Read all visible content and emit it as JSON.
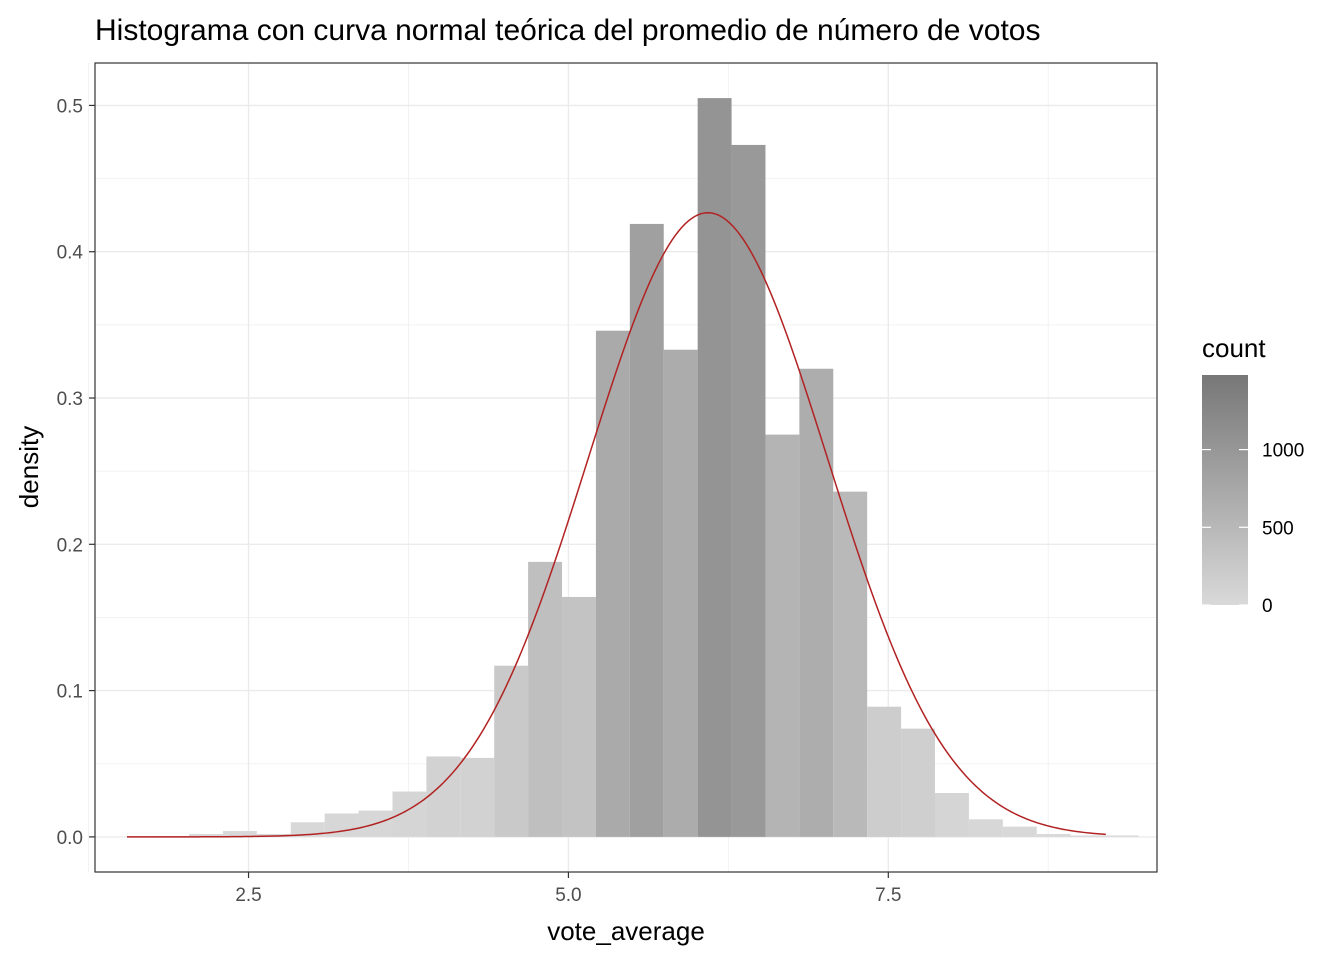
{
  "chart_data": {
    "type": "bar",
    "title": "Histograma con curva normal teórica del promedio de número de votos",
    "xlabel": "vote_average",
    "ylabel": "density",
    "xlim": [
      1.3,
      9.6
    ],
    "ylim": [
      -0.024,
      0.529
    ],
    "x_ticks": [
      2.5,
      5.0,
      7.5
    ],
    "x_tick_labels": [
      "2.5",
      "5.0",
      "7.5"
    ],
    "y_ticks": [
      0.0,
      0.1,
      0.2,
      0.3,
      0.4,
      0.5
    ],
    "y_tick_labels": [
      "0.0",
      "0.1",
      "0.2",
      "0.3",
      "0.4",
      "0.5"
    ],
    "grid": true,
    "bin_width": 0.265,
    "bins": [
      {
        "x0": 1.77,
        "x1": 2.035,
        "density": 0.0005,
        "count": 1
      },
      {
        "x0": 2.035,
        "x1": 2.3,
        "density": 0.002,
        "count": 4
      },
      {
        "x0": 2.3,
        "x1": 2.565,
        "density": 0.004,
        "count": 8
      },
      {
        "x0": 2.565,
        "x1": 2.83,
        "density": 0.002,
        "count": 4
      },
      {
        "x0": 2.83,
        "x1": 3.095,
        "density": 0.01,
        "count": 20
      },
      {
        "x0": 3.095,
        "x1": 3.36,
        "density": 0.016,
        "count": 33
      },
      {
        "x0": 3.36,
        "x1": 3.625,
        "density": 0.018,
        "count": 37
      },
      {
        "x0": 3.625,
        "x1": 3.89,
        "density": 0.031,
        "count": 64
      },
      {
        "x0": 3.89,
        "x1": 4.155,
        "density": 0.055,
        "count": 113
      },
      {
        "x0": 4.155,
        "x1": 4.42,
        "density": 0.054,
        "count": 111
      },
      {
        "x0": 4.42,
        "x1": 4.685,
        "density": 0.117,
        "count": 240
      },
      {
        "x0": 4.685,
        "x1": 4.95,
        "density": 0.188,
        "count": 386
      },
      {
        "x0": 4.95,
        "x1": 5.215,
        "density": 0.164,
        "count": 337
      },
      {
        "x0": 5.215,
        "x1": 5.48,
        "density": 0.346,
        "count": 711
      },
      {
        "x0": 5.48,
        "x1": 5.745,
        "density": 0.419,
        "count": 861
      },
      {
        "x0": 5.745,
        "x1": 6.01,
        "density": 0.333,
        "count": 684
      },
      {
        "x0": 6.01,
        "x1": 6.275,
        "density": 0.505,
        "count": 1038
      },
      {
        "x0": 6.275,
        "x1": 6.54,
        "density": 0.473,
        "count": 972
      },
      {
        "x0": 6.54,
        "x1": 6.805,
        "density": 0.275,
        "count": 565
      },
      {
        "x0": 6.805,
        "x1": 7.07,
        "density": 0.32,
        "count": 657
      },
      {
        "x0": 7.07,
        "x1": 7.335,
        "density": 0.236,
        "count": 485
      },
      {
        "x0": 7.335,
        "x1": 7.6,
        "density": 0.089,
        "count": 183
      },
      {
        "x0": 7.6,
        "x1": 7.865,
        "density": 0.074,
        "count": 152
      },
      {
        "x0": 7.865,
        "x1": 8.13,
        "density": 0.03,
        "count": 62
      },
      {
        "x0": 8.13,
        "x1": 8.395,
        "density": 0.012,
        "count": 25
      },
      {
        "x0": 8.395,
        "x1": 8.66,
        "density": 0.007,
        "count": 14
      },
      {
        "x0": 8.66,
        "x1": 8.925,
        "density": 0.002,
        "count": 4
      },
      {
        "x0": 8.925,
        "x1": 9.19,
        "density": 0.001,
        "count": 2
      },
      {
        "x0": 9.19,
        "x1": 9.455,
        "density": 0.001,
        "count": 2
      }
    ],
    "normal_curve": {
      "mean": 6.09,
      "sd": 0.935,
      "x_range": [
        1.55,
        9.2
      ],
      "color": "#b22222"
    },
    "legend": {
      "title": "count",
      "placement": "right",
      "breaks": [
        0,
        500,
        1000
      ],
      "break_labels": [
        "0",
        "500",
        "1000"
      ],
      "range": [
        0,
        1480
      ],
      "color_low": "#d9d9d9",
      "color_high": "#777777"
    }
  }
}
